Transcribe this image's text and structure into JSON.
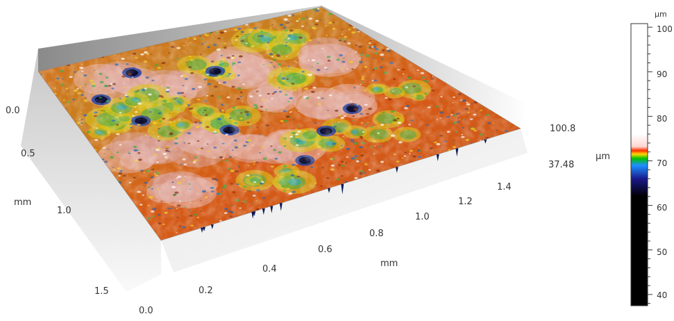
{
  "chart_data": {
    "type": "surface-3d",
    "x_axis": {
      "label": "mm",
      "ticks": [
        "0.0",
        "0.2",
        "0.4",
        "0.6",
        "0.8",
        "1.0",
        "1.2",
        "1.4"
      ],
      "range": [
        0.0,
        1.5
      ]
    },
    "y_axis": {
      "label": "mm",
      "ticks": [
        "0.0",
        "0.5",
        "1.0",
        "1.5"
      ],
      "range": [
        0.0,
        1.5
      ]
    },
    "z_axis": {
      "ticks": [
        "100.8",
        "37.48"
      ],
      "range": [
        37.48,
        100.8
      ]
    },
    "z_unit_label": "µm",
    "colorbar": {
      "unit": "µm",
      "ticks": [
        "100",
        "90",
        "80",
        "70",
        "60",
        "50",
        "40"
      ],
      "range": [
        37.48,
        100.8
      ],
      "stops": [
        {
          "value": 37.48,
          "color": "#000000"
        },
        {
          "value": 62,
          "color": "#000000"
        },
        {
          "value": 66,
          "color": "#1a1a8c"
        },
        {
          "value": 69,
          "color": "#1e90ff"
        },
        {
          "value": 70.5,
          "color": "#00c000"
        },
        {
          "value": 71.5,
          "color": "#ffd800"
        },
        {
          "value": 72.3,
          "color": "#ff3000"
        },
        {
          "value": 73.2,
          "color": "#ffd6d0"
        },
        {
          "value": 76,
          "color": "#ffffff"
        },
        {
          "value": 100.8,
          "color": "#ffffff"
        }
      ]
    }
  }
}
